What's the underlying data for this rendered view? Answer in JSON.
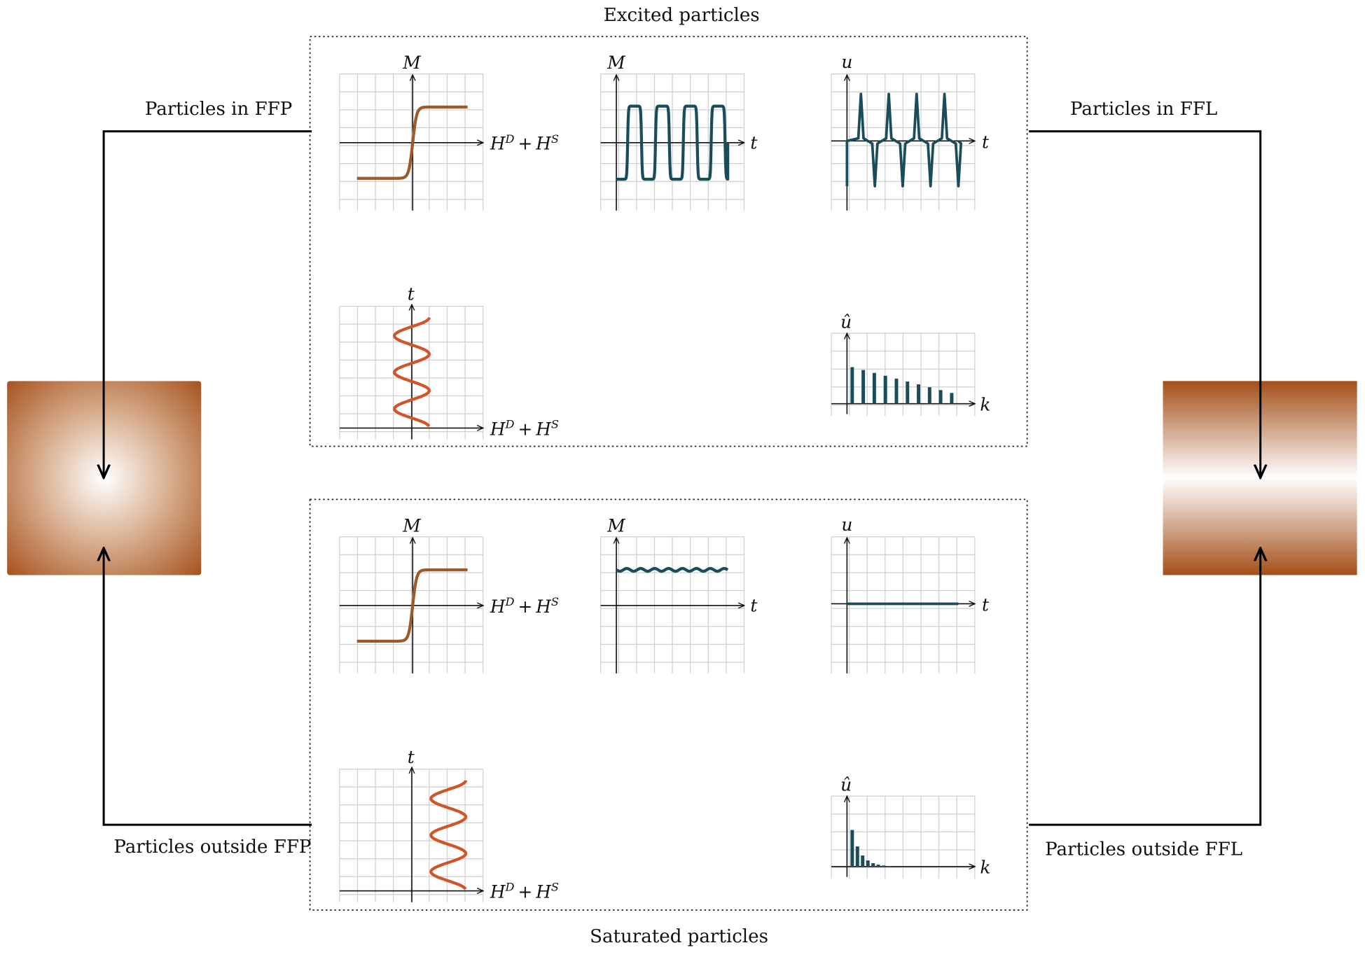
{
  "excited": {
    "title": "Excited particles",
    "magnetization_curve": {
      "y_axis": "M",
      "x_axis": {
        "h1": "H",
        "s1": "D",
        "plus": "+",
        "h2": "H",
        "s2": "S"
      }
    },
    "magnetization_time": {
      "y_axis": "M",
      "x_axis": "t"
    },
    "signal": {
      "y_axis": "u",
      "x_axis": "t"
    },
    "excitation": {
      "y_axis": "t",
      "x_axis": {
        "h1": "H",
        "s1": "D",
        "plus": "+",
        "h2": "H",
        "s2": "S"
      }
    },
    "spectrum": {
      "y_axis": "û",
      "x_axis": "k"
    }
  },
  "saturated": {
    "title": "Saturated particles",
    "magnetization_curve": {
      "y_axis": "M",
      "x_axis": {
        "h1": "H",
        "s1": "D",
        "plus": "+",
        "h2": "H",
        "s2": "S"
      }
    },
    "magnetization_time": {
      "y_axis": "M",
      "x_axis": "t"
    },
    "signal": {
      "y_axis": "u",
      "x_axis": "t"
    },
    "excitation": {
      "y_axis": "t",
      "x_axis": {
        "h1": "H",
        "s1": "D",
        "plus": "+",
        "h2": "H",
        "s2": "S"
      }
    },
    "spectrum": {
      "y_axis": "û",
      "x_axis": "k"
    }
  },
  "ffp": {
    "inside": "Particles in FFP",
    "outside": "Particles outside FFP"
  },
  "ffl": {
    "inside": "Particles in FFL",
    "outside": "Particles outside FFL"
  }
}
